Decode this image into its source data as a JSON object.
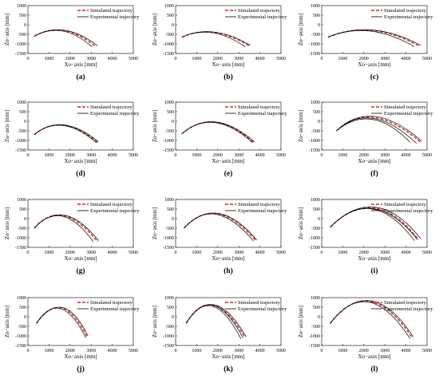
{
  "colors": {
    "simulated": "#d62728",
    "experimental": "#000000"
  },
  "panels": [
    {
      "label": "(a)",
      "xlabel": "Xo−axis [mm]",
      "ylabel": "Zo−axis [mm]",
      "legend": [
        "Simulated trajectory",
        "Experimental trajectory"
      ]
    },
    {
      "label": "(b)",
      "xlabel": "Xo−axis [mm]",
      "ylabel": "Zo−axis [mm]",
      "legend": [
        "Simulated trajectory",
        "Experimental trajectory"
      ]
    },
    {
      "label": "(c)",
      "xlabel": "Xo−axis [mm]",
      "ylabel": "Zo−axis [mm]",
      "legend": [
        "Simulated trajectory",
        "Experimental trajectory"
      ]
    },
    {
      "label": "(d)",
      "xlabel": "Xo−axis [mm]",
      "ylabel": "Zo−axis [mm]",
      "legend": [
        "Simulated trajectory",
        "Experimental trajectory"
      ]
    },
    {
      "label": "(e)",
      "xlabel": "Xo−axis [mm]",
      "ylabel": "Zo−axis [mm]",
      "legend": [
        "Simulated trajectory",
        "Experimental trajectory"
      ]
    },
    {
      "label": "(f)",
      "xlabel": "Xo−axis [mm]",
      "ylabel": "Zo−axis [mm]",
      "legend": [
        "Simulated trajectory",
        "Experimental trajectory"
      ]
    },
    {
      "label": "(g)",
      "xlabel": "Xo−axis [mm]",
      "ylabel": "Zo−axis [mm]",
      "legend": [
        "Simulated trajectory",
        "Experimental trajectory"
      ]
    },
    {
      "label": "(h)",
      "xlabel": "Xo−axis [mm]",
      "ylabel": "Zo−axis [mm]",
      "legend": [
        "Simulated trajectory",
        "Experimental trajectory"
      ]
    },
    {
      "label": "(i)",
      "xlabel": "Xo−axis [mm]",
      "ylabel": "Zo−axis [mm]",
      "legend": [
        "Simulated trajectory",
        "Experimental trajectory"
      ]
    },
    {
      "label": "(j)",
      "xlabel": "Xo−axis [mm]",
      "ylabel": "Zo−axis [mm]",
      "legend": [
        "Simulated trajectory",
        "Experimental trajectory"
      ]
    },
    {
      "label": "(k)",
      "xlabel": "Xo−axis [mm]",
      "ylabel": "Zo−axis [mm]",
      "legend": [
        "Simulated trajectory",
        "Experimental trajectory"
      ]
    },
    {
      "label": "(l)",
      "xlabel": "Xo−axis [mm]",
      "ylabel": "Zo−axis [mm]",
      "legend": [
        "Simulated trajectory",
        "Experimental trajectory"
      ]
    }
  ],
  "chart_data": [
    {
      "type": "line",
      "xlim": [
        0,
        5000
      ],
      "ylim": [
        -1500,
        1000
      ],
      "xticks": [
        0,
        1000,
        2000,
        3000,
        4000,
        5000
      ],
      "yticks": [
        -1500,
        -1000,
        -500,
        0,
        500,
        1000
      ],
      "series": [
        {
          "name": "Simulated trajectory",
          "style": "dashed",
          "points": [
            [
              300,
              -600
            ],
            [
              1700,
              -310
            ],
            [
              3200,
              -1130
            ]
          ]
        },
        {
          "name": "Experimental trajectory",
          "style": "solid",
          "points": [
            [
              300,
              -600
            ],
            [
              1650,
              -330
            ],
            [
              3050,
              -1160
            ]
          ]
        },
        {
          "name": "Experimental trajectory",
          "style": "solid",
          "points": [
            [
              300,
              -600
            ],
            [
              1750,
              -290
            ],
            [
              3300,
              -1100
            ]
          ]
        }
      ]
    },
    {
      "type": "line",
      "xlim": [
        0,
        5000
      ],
      "ylim": [
        -1500,
        1000
      ],
      "xticks": [
        0,
        1000,
        2000,
        3000,
        4000,
        5000
      ],
      "yticks": [
        -1500,
        -1000,
        -500,
        0,
        500,
        1000
      ],
      "series": [
        {
          "name": "Simulated trajectory",
          "style": "dashed",
          "points": [
            [
              300,
              -650
            ],
            [
              1800,
              -400
            ],
            [
              3500,
              -1100
            ]
          ]
        },
        {
          "name": "Experimental trajectory",
          "style": "solid",
          "points": [
            [
              300,
              -650
            ],
            [
              1750,
              -420
            ],
            [
              3300,
              -1150
            ]
          ]
        },
        {
          "name": "Experimental trajectory",
          "style": "solid",
          "points": [
            [
              300,
              -650
            ],
            [
              1850,
              -380
            ],
            [
              3550,
              -1080
            ]
          ]
        }
      ]
    },
    {
      "type": "line",
      "xlim": [
        0,
        5000
      ],
      "ylim": [
        -1500,
        1000
      ],
      "xticks": [
        0,
        1000,
        2000,
        3000,
        4000,
        5000
      ],
      "yticks": [
        -1500,
        -1000,
        -500,
        0,
        500,
        1000
      ],
      "series": [
        {
          "name": "Simulated trajectory",
          "style": "dashed",
          "points": [
            [
              300,
              -650
            ],
            [
              2400,
              -300
            ],
            [
              4600,
              -1100
            ]
          ]
        },
        {
          "name": "Experimental trajectory",
          "style": "solid",
          "points": [
            [
              300,
              -650
            ],
            [
              2300,
              -330
            ],
            [
              4400,
              -1150
            ]
          ]
        },
        {
          "name": "Experimental trajectory",
          "style": "solid",
          "points": [
            [
              300,
              -650
            ],
            [
              2450,
              -280
            ],
            [
              4700,
              -1080
            ]
          ]
        }
      ]
    },
    {
      "type": "line",
      "xlim": [
        0,
        5000
      ],
      "ylim": [
        -1500,
        1000
      ],
      "xticks": [
        0,
        1000,
        2000,
        3000,
        4000,
        5000
      ],
      "yticks": [
        -1500,
        -1000,
        -500,
        0,
        500,
        1000
      ],
      "series": [
        {
          "name": "Simulated trajectory",
          "style": "dashed",
          "points": [
            [
              300,
              -700
            ],
            [
              1700,
              -200
            ],
            [
              3300,
              -1100
            ]
          ]
        },
        {
          "name": "Experimental trajectory",
          "style": "solid",
          "points": [
            [
              300,
              -700
            ],
            [
              1680,
              -220
            ],
            [
              3250,
              -1120
            ]
          ]
        },
        {
          "name": "Experimental trajectory",
          "style": "solid",
          "points": [
            [
              300,
              -700
            ],
            [
              1720,
              -190
            ],
            [
              3350,
              -1080
            ]
          ]
        }
      ]
    },
    {
      "type": "line",
      "xlim": [
        0,
        5000
      ],
      "ylim": [
        -1500,
        1000
      ],
      "xticks": [
        0,
        1000,
        2000,
        3000,
        4000,
        5000
      ],
      "yticks": [
        -1500,
        -1000,
        -500,
        0,
        500,
        1000
      ],
      "series": [
        {
          "name": "Simulated trajectory",
          "style": "dashed",
          "points": [
            [
              300,
              -650
            ],
            [
              1900,
              -50
            ],
            [
              3700,
              -1100
            ]
          ]
        },
        {
          "name": "Experimental trajectory",
          "style": "solid",
          "points": [
            [
              300,
              -650
            ],
            [
              1880,
              -70
            ],
            [
              3650,
              -1120
            ]
          ]
        },
        {
          "name": "Experimental trajectory",
          "style": "solid",
          "points": [
            [
              300,
              -650
            ],
            [
              1920,
              -40
            ],
            [
              3750,
              -1080
            ]
          ]
        }
      ]
    },
    {
      "type": "line",
      "xlim": [
        0,
        5000
      ],
      "ylim": [
        -1500,
        1000
      ],
      "xticks": [
        0,
        1000,
        2000,
        3000,
        4000,
        5000
      ],
      "yticks": [
        -1500,
        -1000,
        -500,
        0,
        500,
        1000
      ],
      "series": [
        {
          "name": "Simulated trajectory",
          "style": "dashed",
          "points": [
            [
              700,
              -500
            ],
            [
              2500,
              200
            ],
            [
              4700,
              -1100
            ]
          ]
        },
        {
          "name": "Experimental trajectory",
          "style": "solid",
          "points": [
            [
              700,
              -500
            ],
            [
              2400,
              100
            ],
            [
              4200,
              -1100
            ]
          ]
        },
        {
          "name": "Experimental trajectory",
          "style": "solid",
          "points": [
            [
              700,
              -500
            ],
            [
              2550,
              250
            ],
            [
              4750,
              -1050
            ]
          ]
        },
        {
          "name": "Experimental trajectory",
          "style": "solid",
          "points": [
            [
              700,
              -500
            ],
            [
              2450,
              150
            ],
            [
              4500,
              -1150
            ]
          ]
        }
      ]
    },
    {
      "type": "line",
      "xlim": [
        0,
        5000
      ],
      "ylim": [
        -1500,
        1000
      ],
      "xticks": [
        0,
        1000,
        2000,
        3000,
        4000,
        5000
      ],
      "yticks": [
        -1500,
        -1000,
        -500,
        0,
        500,
        1000
      ],
      "series": [
        {
          "name": "Simulated trajectory",
          "style": "dashed",
          "points": [
            [
              300,
              -500
            ],
            [
              1700,
              150
            ],
            [
              3300,
              -1200
            ]
          ]
        },
        {
          "name": "Experimental trajectory",
          "style": "solid",
          "points": [
            [
              300,
              -500
            ],
            [
              1650,
              120
            ],
            [
              3100,
              -1200
            ]
          ]
        },
        {
          "name": "Experimental trajectory",
          "style": "solid",
          "points": [
            [
              300,
              -500
            ],
            [
              1750,
              170
            ],
            [
              3350,
              -1150
            ]
          ]
        }
      ]
    },
    {
      "type": "line",
      "xlim": [
        0,
        5000
      ],
      "ylim": [
        -1500,
        1000
      ],
      "xticks": [
        0,
        1000,
        2000,
        3000,
        4000,
        5000
      ],
      "yticks": [
        -1500,
        -1000,
        -500,
        0,
        500,
        1000
      ],
      "series": [
        {
          "name": "Simulated trajectory",
          "style": "dashed",
          "points": [
            [
              400,
              -500
            ],
            [
              2000,
              250
            ],
            [
              3800,
              -1150
            ]
          ]
        },
        {
          "name": "Experimental trajectory",
          "style": "solid",
          "points": [
            [
              400,
              -500
            ],
            [
              1950,
              220
            ],
            [
              3700,
              -1180
            ]
          ]
        },
        {
          "name": "Experimental trajectory",
          "style": "solid",
          "points": [
            [
              400,
              -500
            ],
            [
              2050,
              270
            ],
            [
              3850,
              -1120
            ]
          ]
        }
      ]
    },
    {
      "type": "line",
      "xlim": [
        0,
        5000
      ],
      "ylim": [
        -1500,
        1000
      ],
      "xticks": [
        0,
        1000,
        2000,
        3000,
        4000,
        5000
      ],
      "yticks": [
        -1500,
        -1000,
        -500,
        0,
        500,
        1000
      ],
      "series": [
        {
          "name": "Simulated trajectory",
          "style": "dashed",
          "points": [
            [
              400,
              -450
            ],
            [
              2500,
              550
            ],
            [
              4600,
              -1100
            ]
          ]
        },
        {
          "name": "Experimental trajectory",
          "style": "solid",
          "points": [
            [
              400,
              -450
            ],
            [
              2400,
              500
            ],
            [
              4400,
              -1150
            ]
          ]
        },
        {
          "name": "Experimental trajectory",
          "style": "solid",
          "points": [
            [
              400,
              -450
            ],
            [
              2550,
              600
            ],
            [
              4700,
              -1050
            ]
          ]
        },
        {
          "name": "Experimental trajectory",
          "style": "solid",
          "points": [
            [
              400,
              -450
            ],
            [
              2450,
              520
            ],
            [
              4550,
              -1100
            ]
          ]
        }
      ]
    },
    {
      "type": "line",
      "xlim": [
        0,
        5000
      ],
      "ylim": [
        -1500,
        1000
      ],
      "xticks": [
        0,
        1000,
        2000,
        3000,
        4000,
        5000
      ],
      "yticks": [
        -1500,
        -1000,
        -500,
        0,
        500,
        1000
      ],
      "series": [
        {
          "name": "Simulated trajectory",
          "style": "dashed",
          "points": [
            [
              400,
              -350
            ],
            [
              1600,
              450
            ],
            [
              2800,
              -1050
            ]
          ]
        },
        {
          "name": "Experimental trajectory",
          "style": "solid",
          "points": [
            [
              400,
              -350
            ],
            [
              1550,
              420
            ],
            [
              2750,
              -1100
            ]
          ]
        },
        {
          "name": "Experimental trajectory",
          "style": "solid",
          "points": [
            [
              400,
              -350
            ],
            [
              1650,
              480
            ],
            [
              2850,
              -1000
            ]
          ]
        }
      ]
    },
    {
      "type": "line",
      "xlim": [
        0,
        5000
      ],
      "ylim": [
        -1500,
        1000
      ],
      "xticks": [
        0,
        1000,
        2000,
        3000,
        4000,
        5000
      ],
      "yticks": [
        -1500,
        -1000,
        -500,
        0,
        500,
        1000
      ],
      "series": [
        {
          "name": "Simulated trajectory",
          "style": "dashed",
          "points": [
            [
              500,
              -350
            ],
            [
              1800,
              600
            ],
            [
              3300,
              -1100
            ]
          ]
        },
        {
          "name": "Experimental trajectory",
          "style": "solid",
          "points": [
            [
              500,
              -350
            ],
            [
              1750,
              550
            ],
            [
              3100,
              -1150
            ]
          ]
        },
        {
          "name": "Experimental trajectory",
          "style": "solid",
          "points": [
            [
              500,
              -350
            ],
            [
              1850,
              620
            ],
            [
              3350,
              -1050
            ]
          ]
        },
        {
          "name": "Experimental trajectory",
          "style": "solid",
          "points": [
            [
              500,
              -350
            ],
            [
              1800,
              580
            ],
            [
              3200,
              -1100
            ]
          ]
        }
      ]
    },
    {
      "type": "line",
      "xlim": [
        0,
        5000
      ],
      "ylim": [
        -1500,
        1000
      ],
      "xticks": [
        0,
        1000,
        2000,
        3000,
        4000,
        5000
      ],
      "yticks": [
        -1500,
        -1000,
        -500,
        0,
        500,
        1000
      ],
      "series": [
        {
          "name": "Simulated trajectory",
          "style": "dashed",
          "points": [
            [
              400,
              -350
            ],
            [
              2300,
              800
            ],
            [
              4300,
              -1100
            ]
          ]
        },
        {
          "name": "Experimental trajectory",
          "style": "solid",
          "points": [
            [
              400,
              -350
            ],
            [
              2250,
              760
            ],
            [
              4200,
              -1150
            ]
          ]
        },
        {
          "name": "Experimental trajectory",
          "style": "solid",
          "points": [
            [
              400,
              -350
            ],
            [
              2350,
              830
            ],
            [
              4350,
              -1050
            ]
          ]
        }
      ]
    }
  ]
}
